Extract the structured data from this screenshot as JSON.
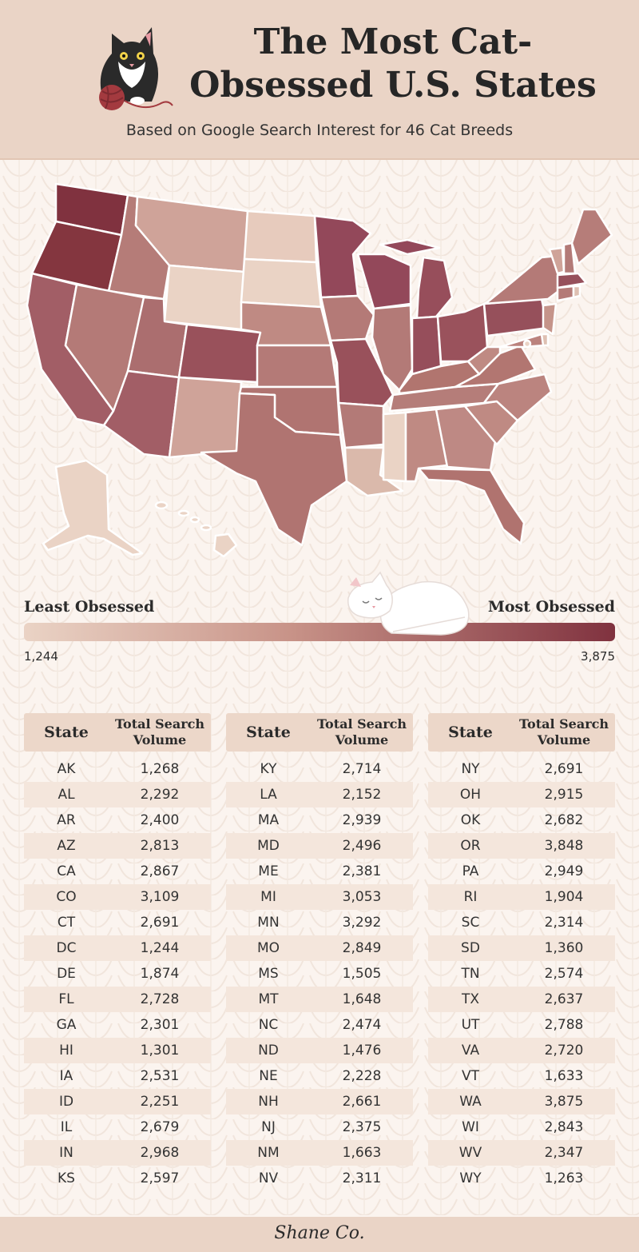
{
  "header": {
    "title_line1": "The Most Cat-",
    "title_line2": "Obsessed U.S. States",
    "subtitle": "Based on Google Search Interest for 46 Cat Breeds"
  },
  "legend": {
    "left_label": "Least Obsessed",
    "right_label": "Most Obsessed",
    "min_value": "1,244",
    "max_value": "3,875",
    "colors": {
      "low": "#ead3c5",
      "mid": "#c89388",
      "high": "#80323f"
    }
  },
  "tables": {
    "col_state": "State",
    "col_volume_line1": "Total Search",
    "col_volume_line2": "Volume",
    "columns": [
      [
        {
          "state": "AK",
          "volume": "1,268"
        },
        {
          "state": "AL",
          "volume": "2,292"
        },
        {
          "state": "AR",
          "volume": "2,400"
        },
        {
          "state": "AZ",
          "volume": "2,813"
        },
        {
          "state": "CA",
          "volume": "2,867"
        },
        {
          "state": "CO",
          "volume": "3,109"
        },
        {
          "state": "CT",
          "volume": "2,691"
        },
        {
          "state": "DC",
          "volume": "1,244"
        },
        {
          "state": "DE",
          "volume": "1,874"
        },
        {
          "state": "FL",
          "volume": "2,728"
        },
        {
          "state": "GA",
          "volume": "2,301"
        },
        {
          "state": "HI",
          "volume": "1,301"
        },
        {
          "state": "IA",
          "volume": "2,531"
        },
        {
          "state": "ID",
          "volume": "2,251"
        },
        {
          "state": "IL",
          "volume": "2,679"
        },
        {
          "state": "IN",
          "volume": "2,968"
        },
        {
          "state": "KS",
          "volume": "2,597"
        }
      ],
      [
        {
          "state": "KY",
          "volume": "2,714"
        },
        {
          "state": "LA",
          "volume": "2,152"
        },
        {
          "state": "MA",
          "volume": "2,939"
        },
        {
          "state": "MD",
          "volume": "2,496"
        },
        {
          "state": "ME",
          "volume": "2,381"
        },
        {
          "state": "MI",
          "volume": "3,053"
        },
        {
          "state": "MN",
          "volume": "3,292"
        },
        {
          "state": "MO",
          "volume": "2,849"
        },
        {
          "state": "MS",
          "volume": "1,505"
        },
        {
          "state": "MT",
          "volume": "1,648"
        },
        {
          "state": "NC",
          "volume": "2,474"
        },
        {
          "state": "ND",
          "volume": "1,476"
        },
        {
          "state": "NE",
          "volume": "2,228"
        },
        {
          "state": "NH",
          "volume": "2,661"
        },
        {
          "state": "NJ",
          "volume": "2,375"
        },
        {
          "state": "NM",
          "volume": "1,663"
        },
        {
          "state": "NV",
          "volume": "2,311"
        }
      ],
      [
        {
          "state": "NY",
          "volume": "2,691"
        },
        {
          "state": "OH",
          "volume": "2,915"
        },
        {
          "state": "OK",
          "volume": "2,682"
        },
        {
          "state": "OR",
          "volume": "3,848"
        },
        {
          "state": "PA",
          "volume": "2,949"
        },
        {
          "state": "RI",
          "volume": "1,904"
        },
        {
          "state": "SC",
          "volume": "2,314"
        },
        {
          "state": "SD",
          "volume": "1,360"
        },
        {
          "state": "TN",
          "volume": "2,574"
        },
        {
          "state": "TX",
          "volume": "2,637"
        },
        {
          "state": "UT",
          "volume": "2,788"
        },
        {
          "state": "VA",
          "volume": "2,720"
        },
        {
          "state": "VT",
          "volume": "1,633"
        },
        {
          "state": "WA",
          "volume": "3,875"
        },
        {
          "state": "WI",
          "volume": "2,843"
        },
        {
          "state": "WV",
          "volume": "2,347"
        },
        {
          "state": "WY",
          "volume": "1,263"
        }
      ]
    ]
  },
  "footer": {
    "brand": "Shane Co."
  },
  "icons": {
    "header_art": "black-white-cat-with-yarn-ball-icon",
    "legend_art": "sleeping-white-cat-icon"
  }
}
